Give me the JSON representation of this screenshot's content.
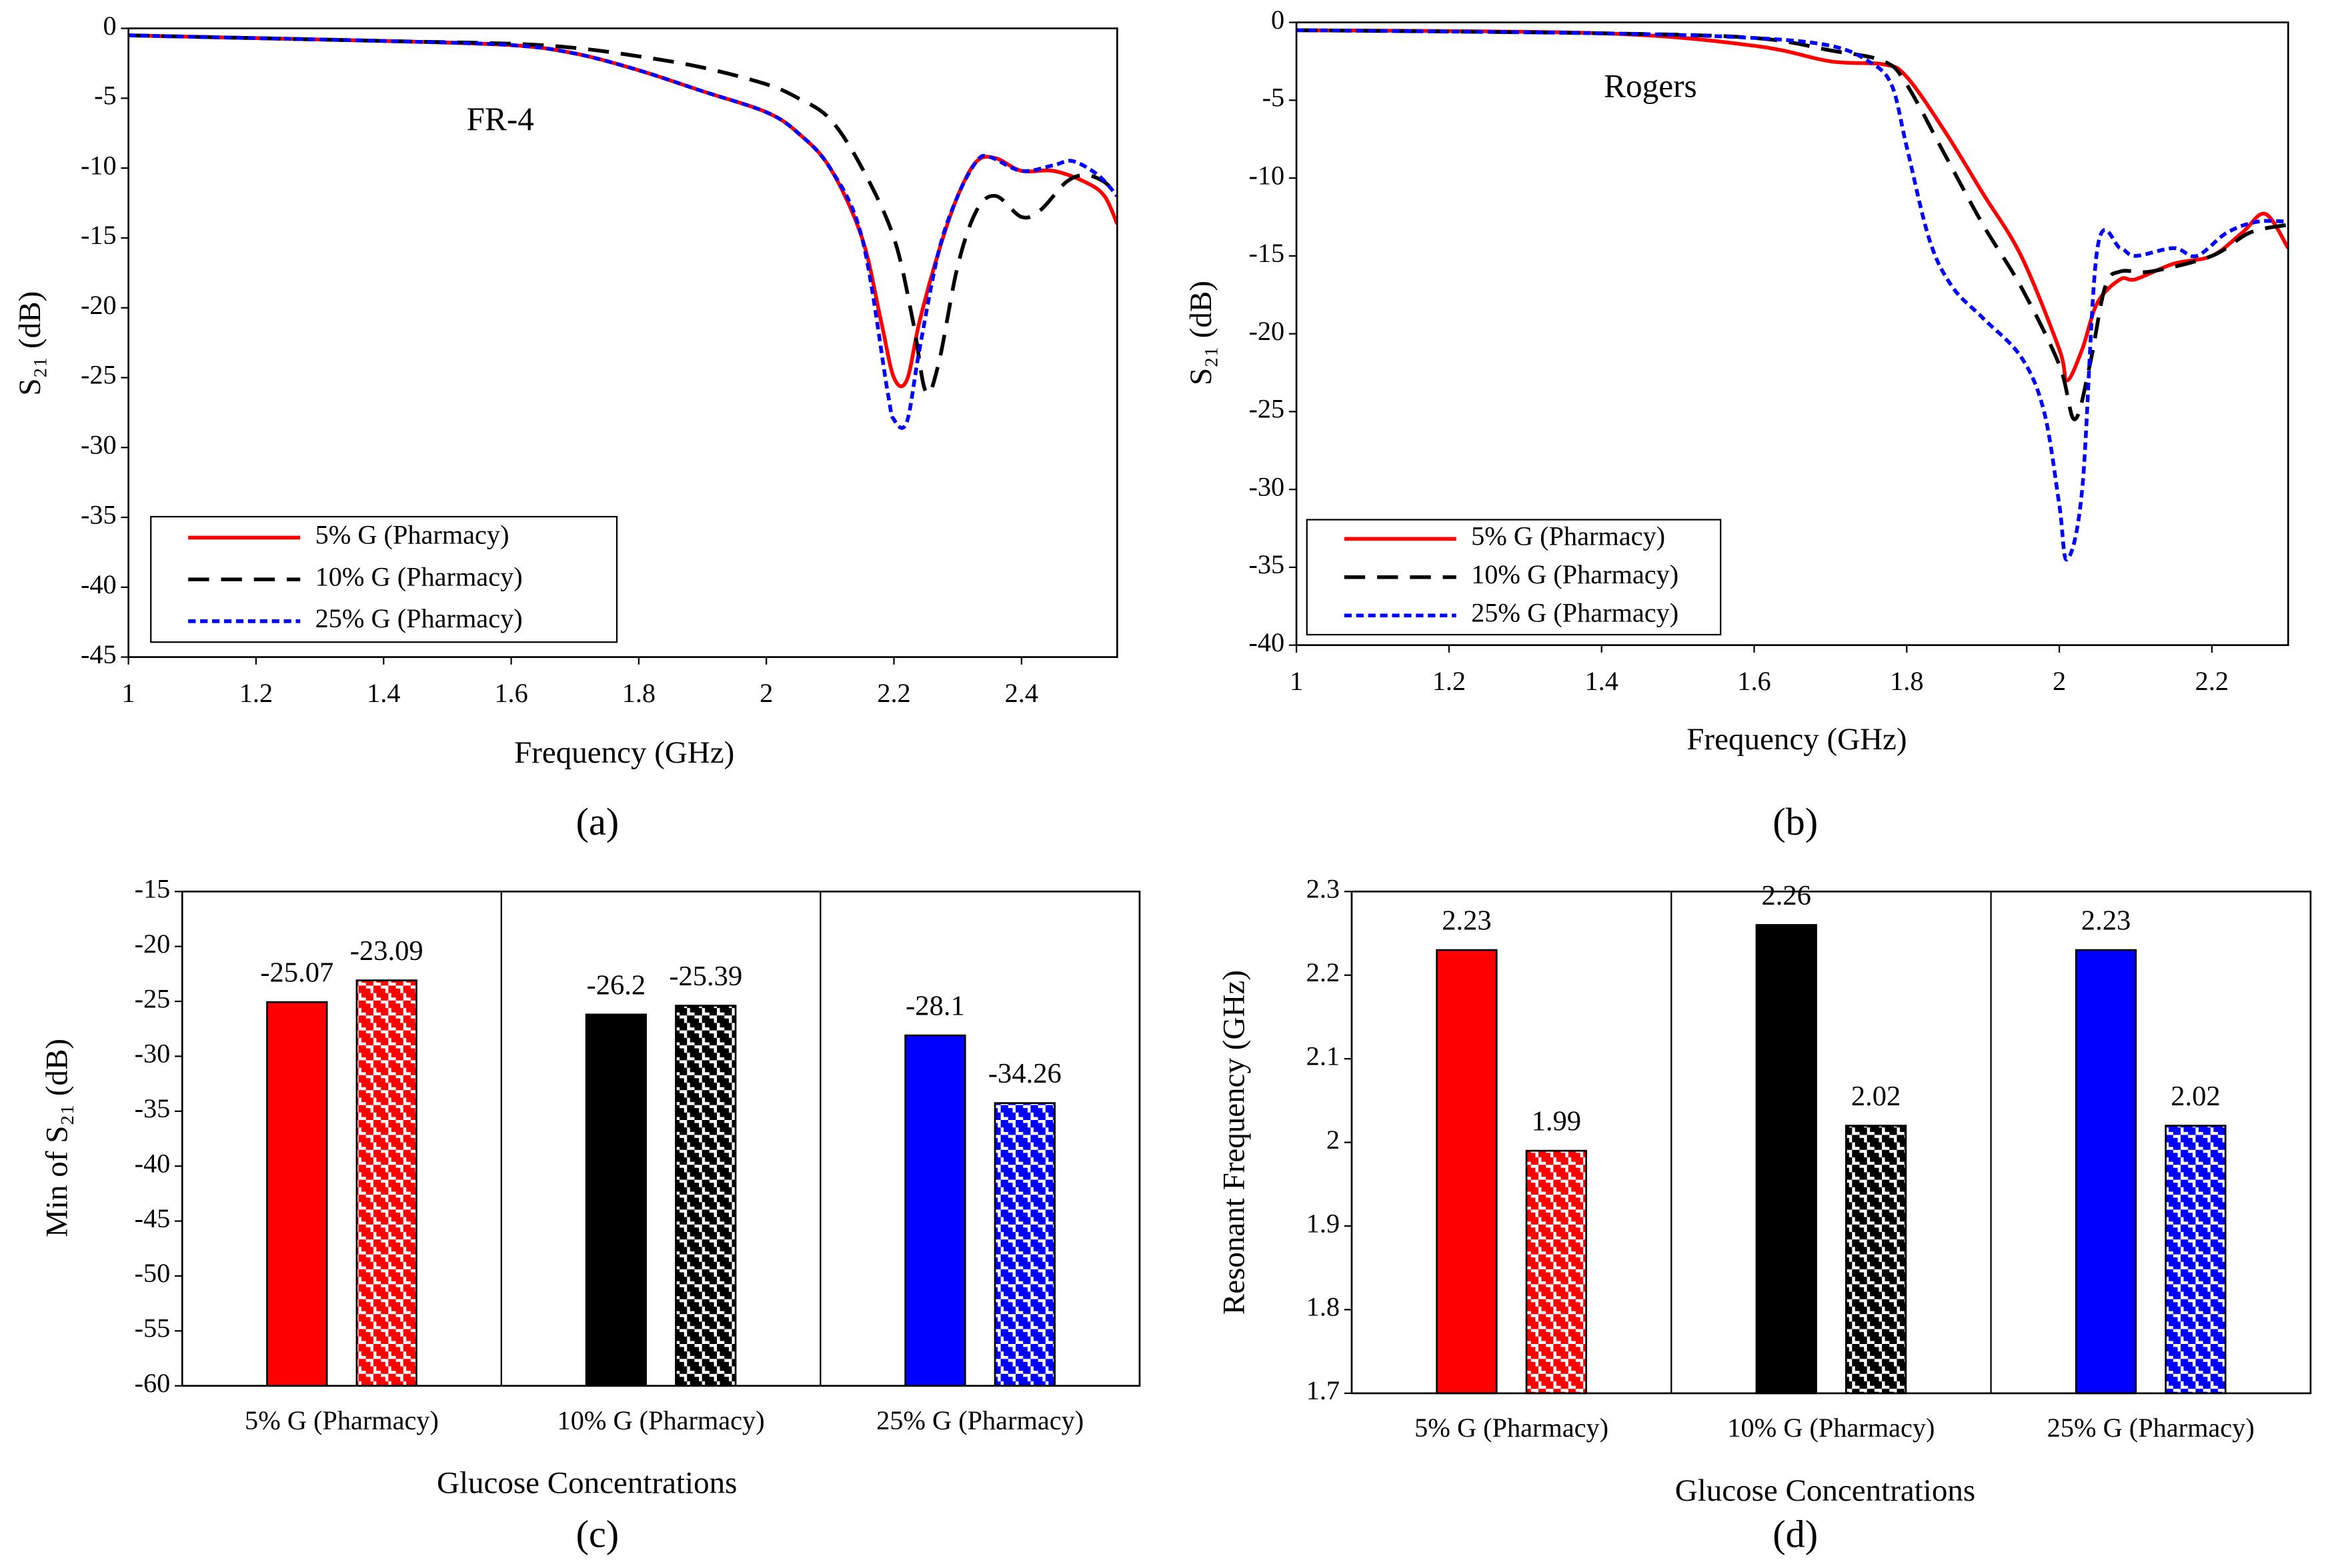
{
  "chart_data": [
    {
      "type": "line",
      "panel_label": "(a)",
      "annotation": "FR-4",
      "annotation_color": "#000000",
      "xlabel": "Frequency (GHz)",
      "ylabel": "S₂₁ (dB)",
      "xlim": [
        1,
        2.55
      ],
      "ylim": [
        -45,
        0
      ],
      "xticks": [
        1,
        1.2,
        1.4,
        1.6,
        1.8,
        2,
        2.2,
        2.4
      ],
      "yticks": [
        0,
        -5,
        -10,
        -15,
        -20,
        -25,
        -30,
        -35,
        -40,
        -45
      ],
      "legend": "lower left",
      "series": [
        {
          "name": "5% G (Pharmacy)",
          "color": "#ff0000",
          "dash": "solid",
          "x": [
            1,
            1.2,
            1.4,
            1.6,
            1.7,
            1.8,
            1.9,
            2,
            2.05,
            2.1,
            2.15,
            2.18,
            2.2,
            2.22,
            2.24,
            2.27,
            2.3,
            2.33,
            2.36,
            2.4,
            2.45,
            2.5,
            2.53,
            2.55
          ],
          "values": [
            -0.5,
            -0.7,
            -0.9,
            -1.2,
            -1.8,
            -3,
            -4.5,
            -6,
            -7.5,
            -10,
            -15,
            -21,
            -25,
            -25.2,
            -21,
            -16,
            -12,
            -9.5,
            -9.3,
            -10.2,
            -10.2,
            -11,
            -12,
            -14
          ]
        },
        {
          "name": "10% G (Pharmacy)",
          "color": "#000000",
          "dash": "long",
          "x": [
            1,
            1.2,
            1.4,
            1.6,
            1.7,
            1.8,
            1.9,
            2,
            2.05,
            2.1,
            2.15,
            2.2,
            2.23,
            2.25,
            2.27,
            2.3,
            2.33,
            2.36,
            2.4,
            2.43,
            2.47,
            2.5,
            2.53,
            2.55
          ],
          "values": [
            -0.5,
            -0.7,
            -0.9,
            -1.1,
            -1.4,
            -2,
            -2.8,
            -4,
            -5,
            -6.5,
            -10,
            -15,
            -21,
            -26,
            -24,
            -17,
            -13,
            -12,
            -13.5,
            -13,
            -11,
            -10.5,
            -11,
            -12
          ]
        },
        {
          "name": "25% G (Pharmacy)",
          "color": "#0000ff",
          "dash": "short",
          "x": [
            1,
            1.2,
            1.4,
            1.6,
            1.7,
            1.8,
            1.9,
            2,
            2.05,
            2.1,
            2.15,
            2.19,
            2.2,
            2.22,
            2.24,
            2.27,
            2.3,
            2.33,
            2.35,
            2.4,
            2.45,
            2.48,
            2.52,
            2.55
          ],
          "values": [
            -0.5,
            -0.7,
            -0.9,
            -1.2,
            -1.8,
            -3,
            -4.5,
            -6,
            -7.5,
            -10,
            -15,
            -26,
            -28,
            -28.2,
            -23,
            -16,
            -12,
            -9.5,
            -9.2,
            -10.2,
            -9.8,
            -9.5,
            -10.5,
            -12
          ]
        }
      ]
    },
    {
      "type": "line",
      "panel_label": "(b)",
      "annotation": "Rogers",
      "annotation_color": "#0000ff",
      "xlabel": "Frequency (GHz)",
      "ylabel": "S₂₁ (dB)",
      "xlim": [
        1,
        2.3
      ],
      "ylim": [
        -40,
        0
      ],
      "xticks": [
        1,
        1.2,
        1.4,
        1.6,
        1.8,
        2,
        2.2
      ],
      "yticks": [
        0,
        -5,
        -10,
        -15,
        -20,
        -25,
        -30,
        -35,
        -40
      ],
      "legend": "lower left",
      "series": [
        {
          "name": "5% G (Pharmacy)",
          "color": "#ff0000",
          "dash": "solid",
          "x": [
            1,
            1.4,
            1.6,
            1.7,
            1.77,
            1.8,
            1.85,
            1.9,
            1.95,
            2,
            2.01,
            2.03,
            2.05,
            2.08,
            2.1,
            2.15,
            2.2,
            2.24,
            2.27,
            2.3
          ],
          "values": [
            -0.5,
            -0.7,
            -1.5,
            -2.5,
            -2.7,
            -3.5,
            -7,
            -11,
            -15,
            -21,
            -23,
            -21,
            -18,
            -16.5,
            -16.5,
            -15.5,
            -15,
            -13.5,
            -12.3,
            -14.5
          ]
        },
        {
          "name": "10% G (Pharmacy)",
          "color": "#000000",
          "dash": "long",
          "x": [
            1,
            1.4,
            1.6,
            1.7,
            1.77,
            1.8,
            1.85,
            1.9,
            1.95,
            2,
            2.02,
            2.04,
            2.06,
            2.08,
            2.12,
            2.2,
            2.25,
            2.3
          ],
          "values": [
            -0.5,
            -0.7,
            -1,
            -1.8,
            -2.5,
            -4,
            -8.5,
            -13,
            -17,
            -22,
            -25.5,
            -22,
            -17,
            -16,
            -16,
            -15,
            -13.5,
            -13
          ]
        },
        {
          "name": "25% G (Pharmacy)",
          "color": "#0000ff",
          "dash": "short",
          "x": [
            1,
            1.4,
            1.6,
            1.7,
            1.75,
            1.78,
            1.8,
            1.83,
            1.86,
            1.9,
            1.95,
            1.98,
            2,
            2.01,
            2.03,
            2.05,
            2.08,
            2.1,
            2.15,
            2.18,
            2.22,
            2.26,
            2.3
          ],
          "values": [
            -0.5,
            -0.7,
            -1,
            -1.5,
            -2.5,
            -4,
            -8,
            -14,
            -17,
            -19,
            -21.5,
            -25,
            -31,
            -34.5,
            -30,
            -14.5,
            -14.5,
            -15,
            -14.5,
            -15,
            -13.5,
            -12.8,
            -12.8
          ]
        }
      ]
    },
    {
      "type": "bar",
      "panel_label": "(c)",
      "xlabel": "Glucose Concentrations",
      "ylabel": "Min of S₂₁ (dB)",
      "ylim": [
        -60,
        -15
      ],
      "yticks": [
        -15,
        -20,
        -25,
        -30,
        -35,
        -40,
        -45,
        -50,
        -55,
        -60
      ],
      "categories": [
        "5% G (Pharmacy)",
        "10% G (Pharmacy)",
        "25% G (Pharmacy)"
      ],
      "colors": [
        "#ff0000",
        "#000000",
        "#0000ff"
      ],
      "series": [
        {
          "pattern": "solid",
          "values": [
            -25.07,
            -26.2,
            -28.1
          ]
        },
        {
          "pattern": "checker",
          "values": [
            -23.09,
            -25.39,
            -34.26
          ]
        }
      ]
    },
    {
      "type": "bar",
      "panel_label": "(d)",
      "xlabel": "Glucose Concentrations",
      "ylabel": "Resonant Frequency (GHz)",
      "ylim": [
        1.7,
        2.3
      ],
      "yticks": [
        2.3,
        2.2,
        2.1,
        2,
        1.9,
        1.8,
        1.7
      ],
      "categories": [
        "5% G (Pharmacy)",
        "10% G (Pharmacy)",
        "25% G (Pharmacy)"
      ],
      "colors": [
        "#ff0000",
        "#000000",
        "#0000ff"
      ],
      "series": [
        {
          "pattern": "solid",
          "values": [
            2.23,
            2.26,
            2.23
          ]
        },
        {
          "pattern": "checker",
          "values": [
            1.99,
            2.02,
            2.02
          ]
        }
      ]
    }
  ]
}
